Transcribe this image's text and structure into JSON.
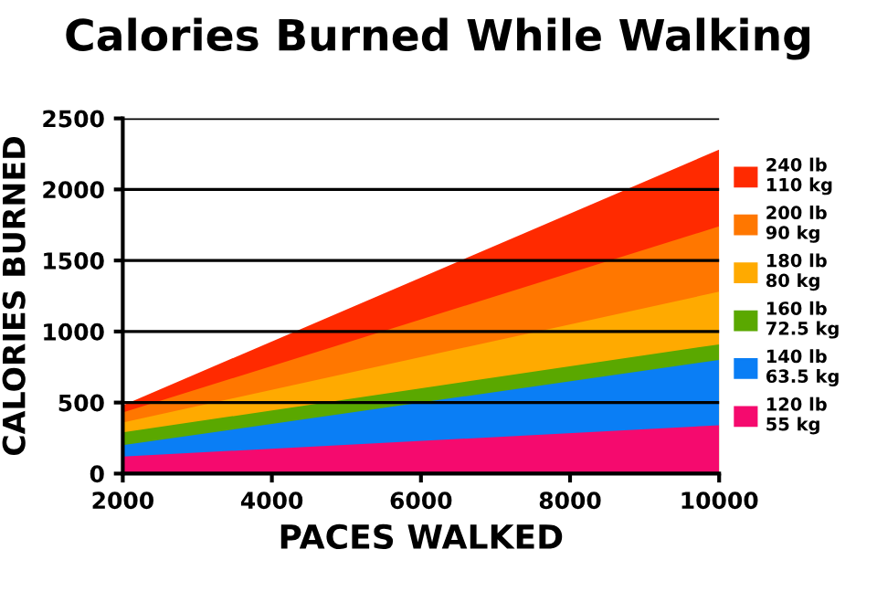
{
  "chart_data": {
    "type": "area",
    "title": "Calories Burned While Walking",
    "xlabel": "PACES WALKED",
    "ylabel": "CALORIES BURNED",
    "x": [
      2000,
      10000
    ],
    "series": [
      {
        "name": "240 lb\n110 kg",
        "color": "#ff2a00",
        "values": [
          480,
          2280
        ]
      },
      {
        "name": "200 lb\n90 kg",
        "color": "#ff7700",
        "values": [
          430,
          1740
        ]
      },
      {
        "name": "180 lb\n80 kg",
        "color": "#ffaa00",
        "values": [
          360,
          1280
        ]
      },
      {
        "name": "160 lb\n72.5 kg",
        "color": "#5aa800",
        "values": [
          290,
          910
        ]
      },
      {
        "name": "140 lb\n63.5 kg",
        "color": "#0a7ef5",
        "values": [
          200,
          800
        ]
      },
      {
        "name": "120 lb\n55 kg",
        "color": "#f50a6e",
        "values": [
          120,
          340
        ]
      }
    ],
    "xlim": [
      2000,
      10000
    ],
    "ylim": [
      0,
      2500
    ],
    "xticks": [
      2000,
      4000,
      6000,
      8000,
      10000
    ],
    "yticks": [
      0,
      500,
      1000,
      1500,
      2000,
      2500
    ],
    "grid": "y",
    "legend": "right"
  }
}
